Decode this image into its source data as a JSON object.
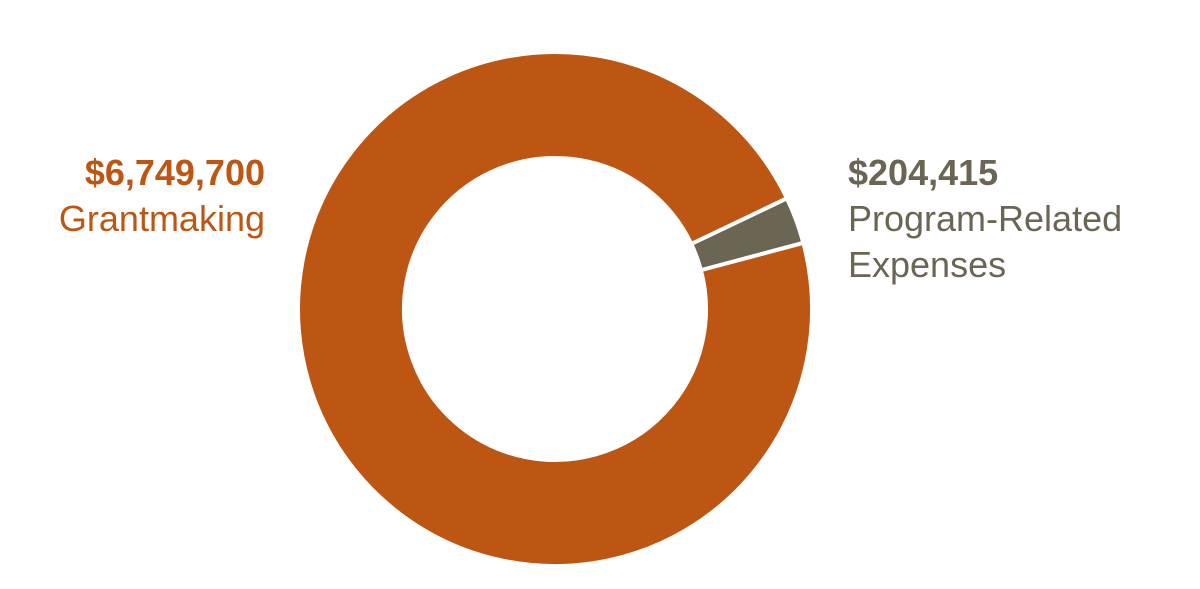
{
  "chart_data": {
    "type": "pie",
    "style": "donut",
    "series": [
      {
        "value": 6749700,
        "value_label": "$6,749,700",
        "label": "Grantmaking",
        "color": "#BE5613"
      },
      {
        "value": 204415,
        "value_label": "$204,415",
        "label_lines": [
          "Program-Related",
          "Expenses"
        ],
        "color": "#6B6554"
      }
    ],
    "legend": "none"
  }
}
